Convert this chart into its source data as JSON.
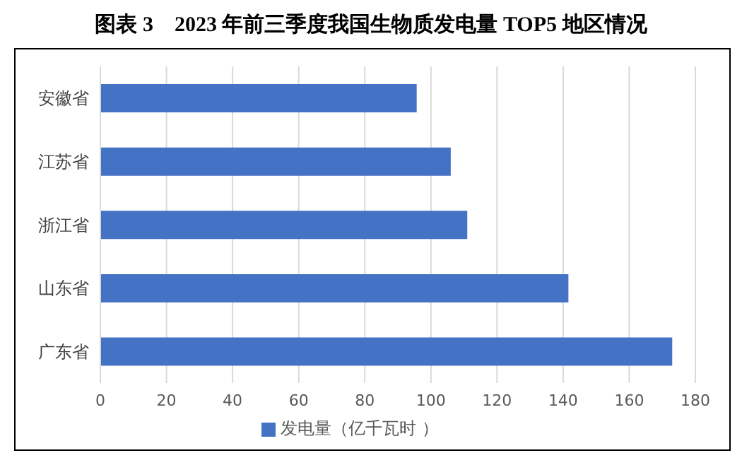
{
  "chart_data": {
    "type": "bar",
    "orientation": "horizontal",
    "title": "图表 3　2023 年前三季度我国生物质发电量 TOP5 地区情况",
    "categories": [
      "安徽省",
      "江苏省",
      "浙江省",
      "山东省",
      "广东省"
    ],
    "series": [
      {
        "name": "发电量（亿千瓦时 ）",
        "color": "#4472c4",
        "values": [
          95.7,
          106,
          111,
          141.6,
          173
        ]
      }
    ],
    "xlim": [
      0,
      180
    ],
    "xticks": [
      0,
      20,
      40,
      60,
      80,
      100,
      120,
      140,
      160,
      180
    ],
    "grid": "x",
    "legend": "bottom"
  }
}
